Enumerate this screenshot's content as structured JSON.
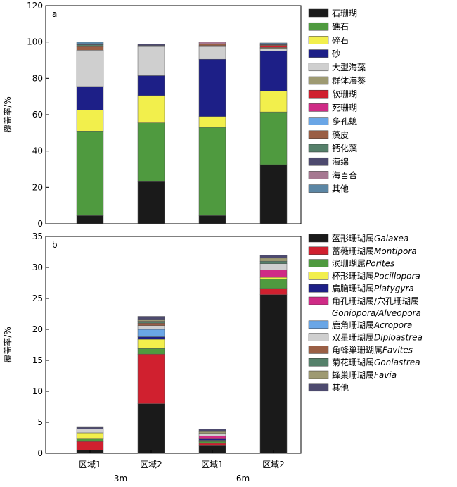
{
  "chart_data": [
    {
      "type": "bar",
      "stacked": true,
      "panel_label": "a",
      "categories": [
        "区域1",
        "区域2",
        "区域1",
        "区域2"
      ],
      "groups": [
        "3m",
        "3m",
        "6m",
        "6m"
      ],
      "ylabel": "覆盖率/%",
      "ylim": [
        0,
        120
      ],
      "yticks": [
        0,
        20,
        40,
        60,
        80,
        100,
        120
      ],
      "grid": false,
      "legend_position": "right",
      "series": [
        {
          "name": "石珊瑚",
          "color": "#1a1a1a",
          "values": [
            4.5,
            23.5,
            4.5,
            32.5
          ]
        },
        {
          "name": "礁石",
          "color": "#4f9a3f",
          "values": [
            46.5,
            32,
            48.5,
            29
          ]
        },
        {
          "name": "碎石",
          "color": "#f2ef4c",
          "values": [
            11.5,
            15,
            6,
            11.5
          ]
        },
        {
          "name": "砂",
          "color": "#1d1f87",
          "values": [
            13,
            11,
            31.5,
            22
          ]
        },
        {
          "name": "大型海藻",
          "color": "#cfcfcf",
          "values": [
            20,
            16,
            7,
            1.5
          ]
        },
        {
          "name": "群体海葵",
          "color": "#9e9a72",
          "values": [
            0,
            0,
            0,
            0.5
          ]
        },
        {
          "name": "软珊瑚",
          "color": "#d0202f",
          "values": [
            0,
            0,
            0,
            1
          ]
        },
        {
          "name": "死珊瑚",
          "color": "#cf2b86",
          "values": [
            0,
            0,
            0.5,
            0
          ]
        },
        {
          "name": "多孔螅",
          "color": "#6aa6e6",
          "values": [
            0,
            0,
            0,
            0
          ]
        },
        {
          "name": "藻皮",
          "color": "#9a5f45",
          "values": [
            2,
            0,
            1,
            0.5
          ]
        },
        {
          "name": "钙化藻",
          "color": "#55806a",
          "values": [
            1,
            0.5,
            0,
            0
          ]
        },
        {
          "name": "海绵",
          "color": "#4d4a6e",
          "values": [
            0.5,
            1,
            0,
            0.5
          ]
        },
        {
          "name": "海百合",
          "color": "#a67891",
          "values": [
            0,
            0,
            1,
            0
          ]
        },
        {
          "name": "其他",
          "color": "#5b86a4",
          "values": [
            1,
            0,
            0,
            0.5
          ]
        }
      ]
    },
    {
      "type": "bar",
      "stacked": true,
      "panel_label": "b",
      "categories": [
        "区域1",
        "区域2",
        "区域1",
        "区域2"
      ],
      "groups": [
        "3m",
        "3m",
        "6m",
        "6m"
      ],
      "ylabel": "覆盖率/%",
      "ylim": [
        0,
        35
      ],
      "yticks": [
        0,
        5,
        10,
        15,
        20,
        25,
        30,
        35
      ],
      "grid": false,
      "legend_position": "right",
      "series": [
        {
          "name_zh": "盔形珊瑚属",
          "name_latin": "Galaxea",
          "color": "#1a1a1a",
          "values": [
            0.5,
            8,
            1.2,
            25.6
          ]
        },
        {
          "name_zh": "蔷薇珊瑚属",
          "name_latin": "Montipora",
          "color": "#d0202f",
          "values": [
            1.4,
            8,
            0.4,
            1
          ]
        },
        {
          "name_zh": "滨珊瑚属",
          "name_latin": "Porites",
          "color": "#4f9a3f",
          "values": [
            0.4,
            0.9,
            0.3,
            1.5
          ]
        },
        {
          "name_zh": "杯形珊瑚属",
          "name_latin": "Pocillopora",
          "color": "#f2ef4c",
          "values": [
            1,
            1.5,
            0.2,
            0.3
          ]
        },
        {
          "name_zh": "扁脑珊瑚属",
          "name_latin": "Platygyra",
          "color": "#1d1f87",
          "values": [
            0,
            0.4,
            0.2,
            0
          ]
        },
        {
          "name_zh": "角孔珊瑚属/穴孔珊瑚属",
          "name_latin": "Goniopora/Alveopora",
          "color": "#cf2b86",
          "values": [
            0,
            0,
            0.5,
            1.2
          ]
        },
        {
          "name_zh": "鹿角珊瑚属",
          "name_latin": "Acropora",
          "color": "#6aa6e6",
          "values": [
            0,
            1.2,
            0,
            0
          ]
        },
        {
          "name_zh": "双星珊瑚属",
          "name_latin": "Diploastrea",
          "color": "#cfcfcf",
          "values": [
            0.6,
            0.6,
            0.4,
            1
          ]
        },
        {
          "name_zh": "角蜂巢珊瑚属",
          "name_latin": "Favites",
          "color": "#9a5f45",
          "values": [
            0,
            0.4,
            0,
            0
          ]
        },
        {
          "name_zh": "菊花珊瑚属",
          "name_latin": "Goniastrea",
          "color": "#55806a",
          "values": [
            0,
            0.3,
            0,
            0.4
          ]
        },
        {
          "name_zh": "蜂巢珊瑚属",
          "name_latin": "Favia",
          "color": "#9e9a72",
          "values": [
            0,
            0.3,
            0.3,
            0.5
          ]
        },
        {
          "name_zh": "其他",
          "name_latin": "",
          "color": "#4d4a6e",
          "values": [
            0.3,
            0.5,
            0.4,
            0.5
          ]
        }
      ]
    }
  ],
  "x_group_labels": [
    "3m",
    "6m"
  ]
}
